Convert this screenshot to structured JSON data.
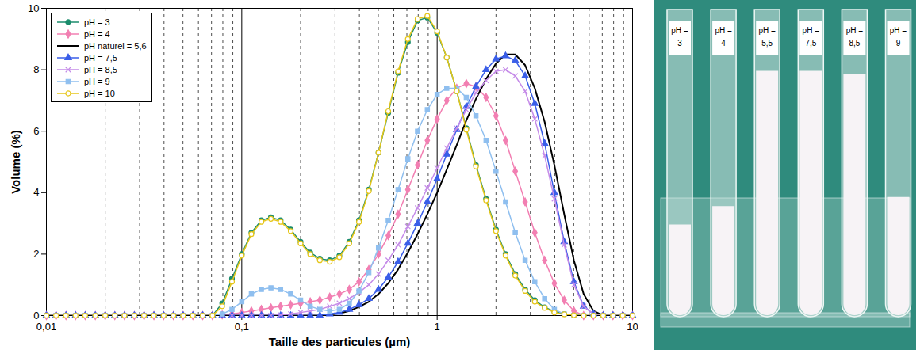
{
  "chart_data": {
    "type": "line",
    "x_label": "Taille des particules (µm)",
    "y_label": "Volume (%)",
    "log": "x",
    "grid": true,
    "legend": "top-left",
    "xlim": [
      0.01,
      10
    ],
    "xticks": [
      {
        "value": 0.01,
        "label": "0,01"
      },
      {
        "value": 0.1,
        "label": "0,1"
      },
      1,
      10
    ],
    "ylim": [
      0,
      10
    ],
    "yticks": [
      0,
      2,
      4,
      6,
      8,
      10
    ],
    "x": [
      0.01,
      0.0112,
      0.0126,
      0.0141,
      0.0158,
      0.0178,
      0.02,
      0.0224,
      0.0251,
      0.0282,
      0.0316,
      0.0355,
      0.0398,
      0.0447,
      0.0501,
      0.0562,
      0.0631,
      0.0708,
      0.0794,
      0.0891,
      0.1,
      0.112,
      0.126,
      0.141,
      0.158,
      0.178,
      0.2,
      0.224,
      0.251,
      0.282,
      0.316,
      0.355,
      0.398,
      0.447,
      0.501,
      0.562,
      0.631,
      0.708,
      0.794,
      0.891,
      1,
      1.12,
      1.26,
      1.41,
      1.58,
      1.78,
      2,
      2.24,
      2.51,
      2.82,
      3.16,
      3.55,
      3.98,
      4.47,
      5.01,
      5.62,
      6.31,
      7.08,
      7.94,
      8.91,
      10
    ],
    "series": [
      {
        "name": "pH = 3",
        "color": "#1b8c6c",
        "marker": "circle",
        "values": [
          0,
          0,
          0,
          0,
          0,
          0,
          0,
          0,
          0,
          0,
          0,
          0,
          0,
          0,
          0,
          0,
          0,
          0,
          0.4,
          1.2,
          2.0,
          2.7,
          3.1,
          3.2,
          3.1,
          2.8,
          2.4,
          2.05,
          1.85,
          1.8,
          1.95,
          2.4,
          3.1,
          4.1,
          5.3,
          6.6,
          7.9,
          8.9,
          9.6,
          9.7,
          9.2,
          8.4,
          7.3,
          6.1,
          4.9,
          3.8,
          2.8,
          2.0,
          1.35,
          0.85,
          0.5,
          0.27,
          0.13,
          0.05,
          0.02,
          0,
          0,
          0,
          0,
          0,
          0
        ]
      },
      {
        "name": "pH = 4",
        "color": "#f27fb2",
        "marker": "diamond",
        "values": [
          0,
          0,
          0,
          0,
          0,
          0,
          0,
          0,
          0,
          0,
          0,
          0,
          0,
          0,
          0,
          0,
          0,
          0,
          0.02,
          0.05,
          0.1,
          0.15,
          0.2,
          0.25,
          0.3,
          0.35,
          0.4,
          0.45,
          0.5,
          0.6,
          0.7,
          0.85,
          1.1,
          1.5,
          2.0,
          2.6,
          3.3,
          4.1,
          4.9,
          5.7,
          6.4,
          7.0,
          7.4,
          7.55,
          7.45,
          7.1,
          6.5,
          5.7,
          4.7,
          3.7,
          2.7,
          1.8,
          1.05,
          0.5,
          0.15,
          0,
          0,
          0,
          0,
          0,
          0
        ]
      },
      {
        "name": "pH naturel = 5,6",
        "color": "#000000",
        "marker": "none",
        "values": [
          0,
          0,
          0,
          0,
          0,
          0,
          0,
          0,
          0,
          0,
          0,
          0,
          0,
          0,
          0,
          0,
          0,
          0,
          0,
          0,
          0,
          0,
          0,
          0,
          0,
          0,
          0,
          0,
          0,
          0.03,
          0.07,
          0.15,
          0.28,
          0.45,
          0.7,
          1.05,
          1.5,
          2.05,
          2.65,
          3.3,
          4.0,
          4.75,
          5.55,
          6.35,
          7.05,
          7.7,
          8.2,
          8.5,
          8.5,
          8.15,
          7.4,
          6.3,
          4.9,
          3.3,
          1.8,
          0.7,
          0.15,
          0,
          0,
          0,
          0
        ]
      },
      {
        "name": "pH = 7,5",
        "color": "#3a5ee8",
        "marker": "triangle",
        "values": [
          0,
          0,
          0,
          0,
          0,
          0,
          0,
          0,
          0,
          0,
          0,
          0,
          0,
          0,
          0,
          0,
          0,
          0,
          0,
          0,
          0,
          0,
          0,
          0,
          0,
          0,
          0,
          0,
          0,
          0.05,
          0.1,
          0.2,
          0.35,
          0.55,
          0.85,
          1.25,
          1.75,
          2.35,
          3.0,
          3.7,
          4.45,
          5.25,
          6.05,
          6.8,
          7.45,
          8.0,
          8.35,
          8.45,
          8.3,
          7.8,
          6.9,
          5.6,
          4.0,
          2.4,
          1.1,
          0.3,
          0.05,
          0,
          0,
          0,
          0
        ]
      },
      {
        "name": "pH = 8,5",
        "color": "#c58be8",
        "marker": "cross",
        "values": [
          0,
          0,
          0,
          0,
          0,
          0,
          0,
          0,
          0,
          0,
          0,
          0,
          0,
          0,
          0,
          0,
          0,
          0,
          0,
          0,
          0,
          0,
          0,
          0,
          0.02,
          0.05,
          0.1,
          0.15,
          0.2,
          0.3,
          0.4,
          0.55,
          0.75,
          1.0,
          1.35,
          1.8,
          2.3,
          2.9,
          3.5,
          4.15,
          4.8,
          5.45,
          6.1,
          6.7,
          7.25,
          7.65,
          7.95,
          8.0,
          7.8,
          7.3,
          6.4,
          5.2,
          3.8,
          2.3,
          1.0,
          0.3,
          0.05,
          0,
          0,
          0,
          0
        ]
      },
      {
        "name": "pH = 9",
        "color": "#8fbfef",
        "marker": "square",
        "values": [
          0,
          0,
          0,
          0,
          0,
          0,
          0,
          0,
          0,
          0,
          0,
          0,
          0,
          0,
          0,
          0,
          0,
          0,
          0.05,
          0.2,
          0.45,
          0.7,
          0.85,
          0.9,
          0.85,
          0.7,
          0.5,
          0.3,
          0.2,
          0.15,
          0.2,
          0.4,
          0.8,
          1.4,
          2.2,
          3.1,
          4.1,
          5.1,
          6.0,
          6.7,
          7.2,
          7.4,
          7.4,
          7.1,
          6.5,
          5.7,
          4.7,
          3.7,
          2.7,
          1.8,
          1.1,
          0.55,
          0.2,
          0.05,
          0,
          0,
          0,
          0,
          0,
          0,
          0
        ]
      },
      {
        "name": "pH = 10",
        "color": "#e6c619",
        "marker": "hollow circle",
        "values": [
          0,
          0,
          0,
          0,
          0,
          0,
          0,
          0,
          0,
          0,
          0,
          0,
          0,
          0,
          0,
          0,
          0,
          0,
          0.3,
          1.1,
          1.95,
          2.65,
          3.05,
          3.15,
          3.05,
          2.75,
          2.35,
          2.0,
          1.8,
          1.75,
          1.9,
          2.35,
          3.05,
          4.05,
          5.3,
          6.65,
          7.95,
          9.0,
          9.65,
          9.75,
          9.25,
          8.4,
          7.3,
          6.05,
          4.85,
          3.75,
          2.75,
          1.95,
          1.3,
          0.8,
          0.45,
          0.25,
          0.1,
          0.04,
          0.01,
          0,
          0,
          0,
          0,
          0,
          0
        ]
      }
    ]
  },
  "photo": {
    "tubes": [
      {
        "label": "pH = 3",
        "sediment_height": 30
      },
      {
        "label": "pH = 4",
        "sediment_height": 36
      },
      {
        "label": "pH = 5,5",
        "sediment_height": 80
      },
      {
        "label": "pH = 7,5",
        "sediment_height": 80
      },
      {
        "label": "pH = 8,5",
        "sediment_height": 79
      },
      {
        "label": "pH = 9",
        "sediment_height": 39
      }
    ]
  }
}
